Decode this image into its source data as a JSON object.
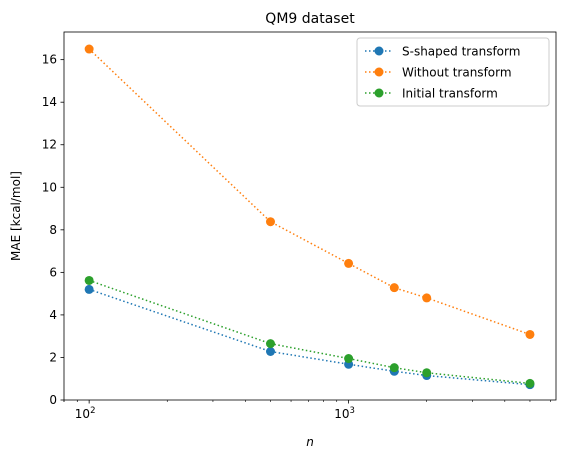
{
  "chart_data": {
    "type": "line",
    "title": "QM9 dataset",
    "xlabel": "n",
    "ylabel": "MAE [kcal/mol]",
    "xscale": "log",
    "xlim": [
      80,
      6300
    ],
    "ylim": [
      0,
      17.3
    ],
    "yticks": [
      0,
      2,
      4,
      6,
      8,
      10,
      12,
      14,
      16
    ],
    "xticks": [
      {
        "value": 100,
        "base": "10",
        "exp": "2"
      },
      {
        "value": 1000,
        "base": "10",
        "exp": "3"
      }
    ],
    "x": [
      100,
      500,
      1000,
      1500,
      2000,
      5000
    ],
    "grid": false,
    "legend_position": "upper right",
    "series": [
      {
        "name": "S-shaped transform",
        "color": "#1f77b4",
        "values": [
          5.2,
          2.28,
          1.68,
          1.35,
          1.15,
          0.72
        ]
      },
      {
        "name": "Without transform",
        "color": "#ff7f0e",
        "values": [
          16.5,
          8.38,
          6.42,
          5.28,
          4.8,
          3.08
        ]
      },
      {
        "name": "Initial transform",
        "color": "#2ca02c",
        "values": [
          5.62,
          2.65,
          1.95,
          1.52,
          1.28,
          0.78
        ]
      }
    ]
  }
}
